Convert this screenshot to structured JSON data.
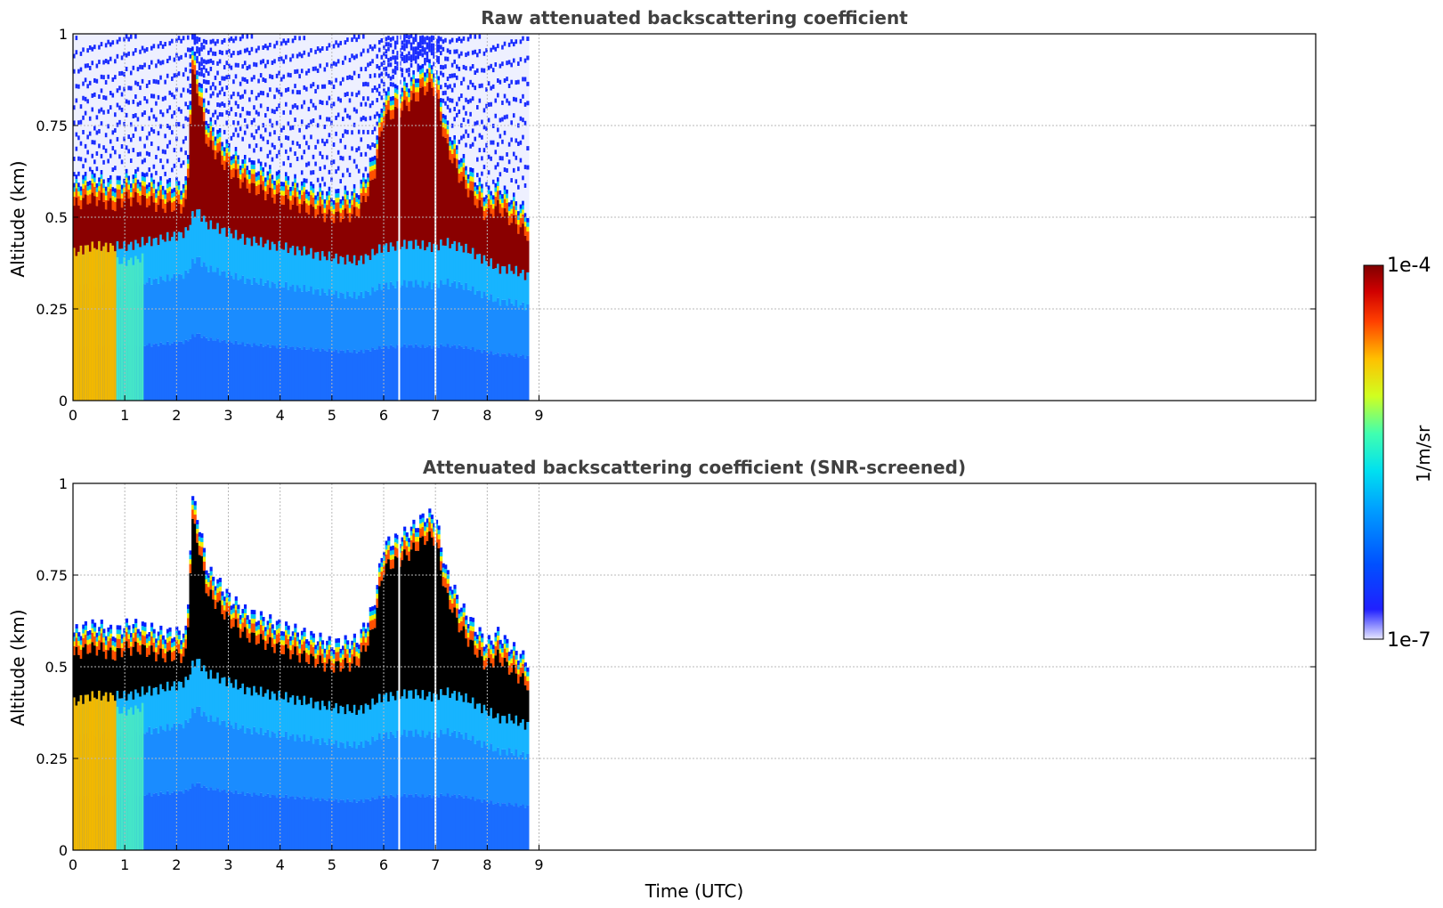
{
  "chart_data": [
    {
      "type": "heatmap",
      "title": "Raw attenuated backscattering coefficient",
      "xlabel": "",
      "ylabel": "Altitude (km)",
      "xlim": [
        0,
        24
      ],
      "ylim": [
        0,
        1
      ],
      "xticks": [
        "0",
        "1",
        "2",
        "3",
        "4",
        "5",
        "6",
        "7",
        "8",
        "9"
      ],
      "yticks": [
        "0",
        "0.25",
        "0.5",
        "0.75",
        "1"
      ],
      "data_end_time": 8.8,
      "grid": true,
      "screened": false
    },
    {
      "type": "heatmap",
      "title": "Attenuated backscattering coefficient (SNR-screened)",
      "xlabel": "Time (UTC)",
      "ylabel": "Altitude (km)",
      "xlim": [
        0,
        24
      ],
      "ylim": [
        0,
        1
      ],
      "xticks": [
        "0",
        "1",
        "2",
        "3",
        "4",
        "5",
        "6",
        "7",
        "8",
        "9"
      ],
      "yticks": [
        "0",
        "0.25",
        "0.5",
        "0.75",
        "1"
      ],
      "data_end_time": 8.8,
      "grid": true,
      "screened": true
    }
  ],
  "colorbar": {
    "label": "1/m/sr",
    "max_label": "1e-4",
    "min_label": "1e-7",
    "colormap": "jet"
  },
  "profile": {
    "times": [
      0,
      0.3,
      0.5,
      0.8,
      1.0,
      1.3,
      1.7,
      2.0,
      2.2,
      2.3,
      2.4,
      2.6,
      2.8,
      3.0,
      3.3,
      4.0,
      5.0,
      5.5,
      5.8,
      6.0,
      6.3,
      6.5,
      6.8,
      7.0,
      7.2,
      7.5,
      8.0,
      8.2,
      8.4,
      8.8
    ],
    "boundary_layer_top_km": [
      0.58,
      0.6,
      0.6,
      0.58,
      0.6,
      0.6,
      0.58,
      0.58,
      0.58,
      0.95,
      0.9,
      0.75,
      0.72,
      0.68,
      0.64,
      0.6,
      0.55,
      0.56,
      0.65,
      0.82,
      0.84,
      0.86,
      0.9,
      0.9,
      0.75,
      0.65,
      0.55,
      0.58,
      0.55,
      0.5
    ],
    "boundary_layer_base_km": [
      0.4,
      0.42,
      0.42,
      0.42,
      0.42,
      0.43,
      0.44,
      0.45,
      0.46,
      0.5,
      0.52,
      0.48,
      0.47,
      0.46,
      0.44,
      0.42,
      0.39,
      0.38,
      0.4,
      0.42,
      0.42,
      0.43,
      0.42,
      0.42,
      0.43,
      0.42,
      0.38,
      0.36,
      0.36,
      0.34
    ],
    "gap_times": [
      6.3,
      7.0
    ]
  }
}
